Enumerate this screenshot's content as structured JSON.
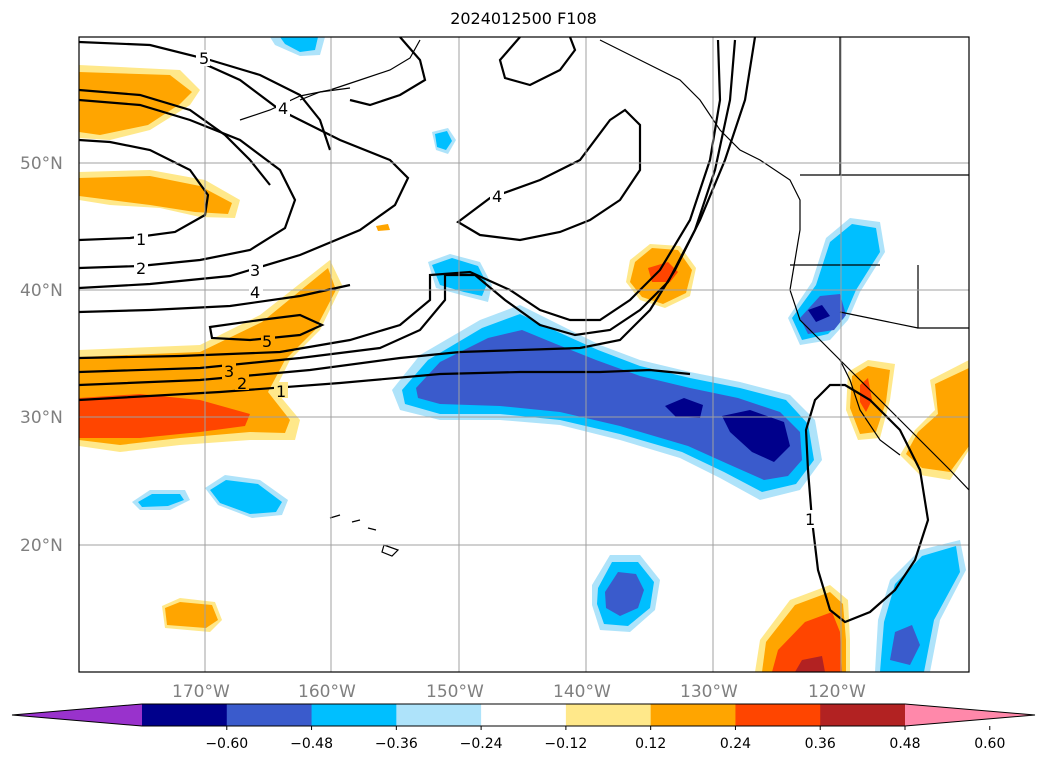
{
  "title": "2024012500 F108",
  "map": {
    "lat_labels": [
      "50°N",
      "40°N",
      "30°N",
      "20°N"
    ],
    "lon_labels": [
      "170°W",
      "160°W",
      "150°W",
      "140°W",
      "130°W",
      "120°W"
    ],
    "contour_labels": [
      "5",
      "4",
      "4",
      "1",
      "2",
      "3",
      "4",
      "5",
      "3",
      "2",
      "1",
      "1"
    ]
  },
  "colorbar": {
    "ticks": [
      "−0.60",
      "−0.48",
      "−0.36",
      "−0.24",
      "−0.12",
      "0.12",
      "0.24",
      "0.36",
      "0.48",
      "0.60"
    ],
    "colors": [
      "#9932cc",
      "#00008b",
      "#3a5bcc",
      "#00bfff",
      "#aee3fa",
      "#ffffff",
      "#ffe88a",
      "#ffa500",
      "#ff4500",
      "#b22222",
      "#ff88aa"
    ]
  },
  "legend_colors": {
    "pos_light": "#ffe88a",
    "pos_mid": "#ffa500",
    "pos_strong": "#ff4500",
    "pos_very": "#b22222",
    "neg_light": "#aee3fa",
    "neg_mid": "#00bfff",
    "neg_strong": "#3a5bcc",
    "neg_very": "#00008b"
  }
}
